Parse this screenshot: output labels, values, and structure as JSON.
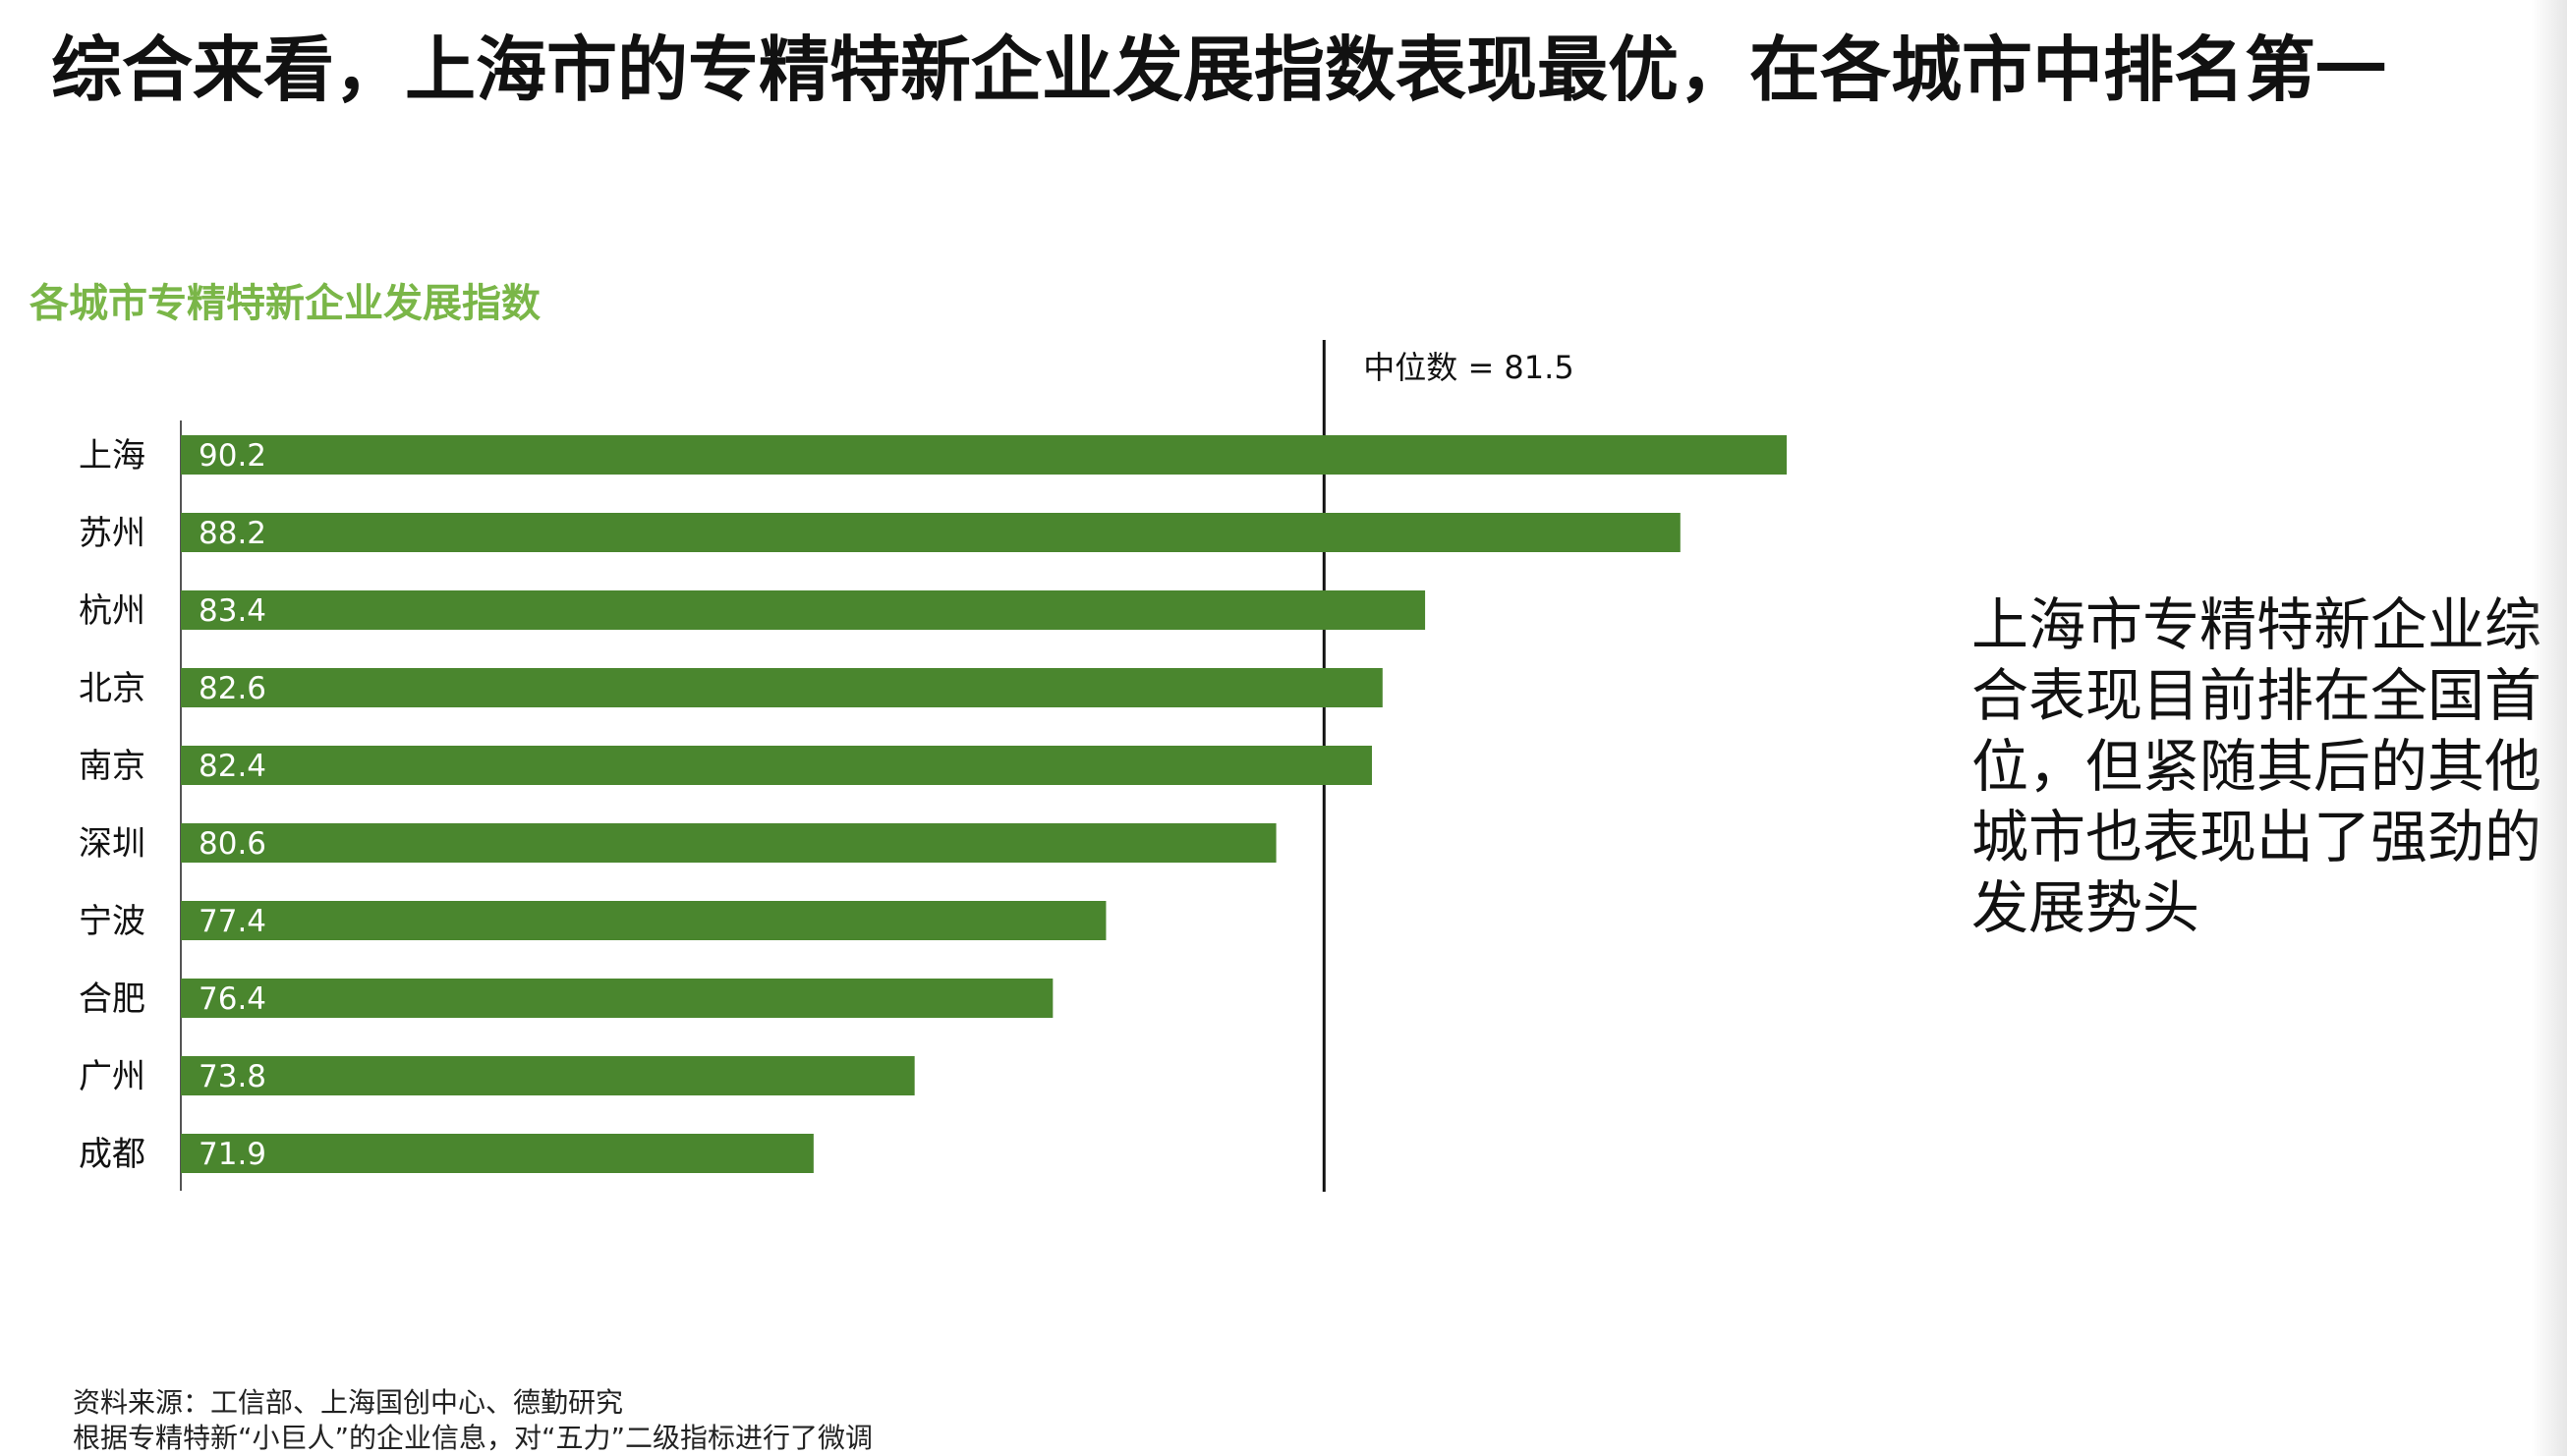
{
  "title": "综合来看，上海市的专精特新企业发展指数表现最优，在各城市中排名第一",
  "chart_data": {
    "type": "bar",
    "orientation": "horizontal",
    "title": "各城市专精特新企业发展指数",
    "categories": [
      "上海",
      "苏州",
      "杭州",
      "北京",
      "南京",
      "深圳",
      "宁波",
      "合肥",
      "广州",
      "成都"
    ],
    "values": [
      90.2,
      88.2,
      83.4,
      82.6,
      82.4,
      80.6,
      77.4,
      76.4,
      73.8,
      71.9
    ],
    "value_labels": [
      "90.2",
      "88.2",
      "83.4",
      "82.6",
      "82.4",
      "80.6",
      "77.4",
      "76.4",
      "73.8",
      "71.9"
    ],
    "xlim": [
      60,
      90.2
    ],
    "median": {
      "label": "中位数 = 81.5",
      "value": 81.5
    },
    "bar_color": "#4a862e",
    "title_color": "#7ab648",
    "grid": false,
    "legend": "none"
  },
  "commentary": {
    "lines": [
      "上海市专精特新企业综",
      "合表现目前排在全国首",
      "位，但紧随其后的其他",
      "城市也表现出了强劲的",
      "发展势头"
    ]
  },
  "footnote": {
    "source": "资料来源：工信部、上海国创中心、德勤研究",
    "note": "根据专精特新“小巨人”的企业信息，对“五力”二级指标进行了微调"
  }
}
